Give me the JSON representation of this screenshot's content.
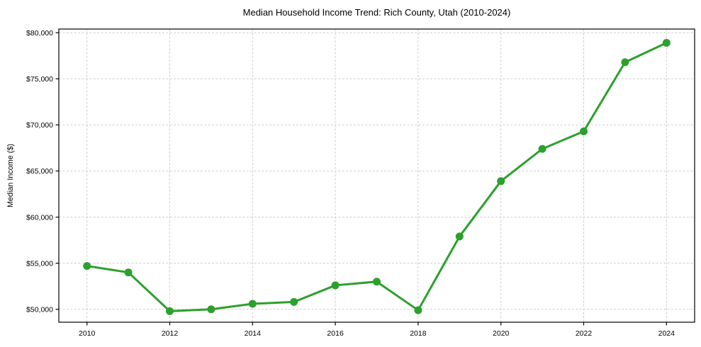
{
  "chart_data": {
    "type": "line",
    "title": "Median Household Income Trend: Rich County, Utah (2010-2024)",
    "xlabel": "",
    "ylabel": "Median Income ($)",
    "x": [
      2010,
      2011,
      2012,
      2013,
      2014,
      2015,
      2016,
      2017,
      2018,
      2019,
      2020,
      2021,
      2022,
      2023,
      2024
    ],
    "series": [
      {
        "name": "Median Household Income",
        "values": [
          54700,
          54000,
          49800,
          50000,
          50600,
          50800,
          52600,
          53000,
          49900,
          57900,
          63900,
          67400,
          69300,
          76800,
          78900
        ]
      }
    ],
    "xlim": [
      2009.32,
      2024.68
    ],
    "ylim": [
      48600,
      80400
    ],
    "x_ticks": [
      2010,
      2012,
      2014,
      2016,
      2018,
      2020,
      2022,
      2024
    ],
    "x_tick_labels": [
      "2010",
      "2012",
      "2014",
      "2016",
      "2018",
      "2020",
      "2022",
      "2024"
    ],
    "y_ticks": [
      50000,
      55000,
      60000,
      65000,
      70000,
      75000,
      80000
    ],
    "y_tick_labels": [
      "$50,000",
      "$55,000",
      "$60,000",
      "$65,000",
      "$70,000",
      "$75,000",
      "$80,000"
    ],
    "grid": true,
    "grid_style": "dashed",
    "legend": "none",
    "line_color": "#2ca02c",
    "marker": "circle",
    "grid_color": "#cfcfcf",
    "axis_color": "#000000",
    "background_color": "#ffffff"
  }
}
